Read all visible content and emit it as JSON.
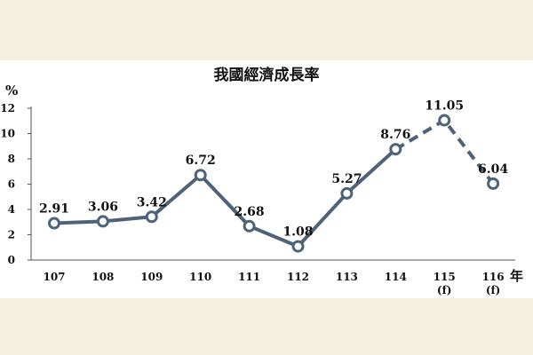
{
  "chart_data": {
    "type": "line",
    "title": "我國經濟成長率",
    "ylabel": "%",
    "xlabel": "年",
    "ylim": [
      0,
      12
    ],
    "yticks": [
      "0",
      "2",
      "4",
      "6",
      "8",
      "10",
      "12"
    ],
    "grid": false,
    "legend": "none",
    "categories": [
      "107",
      "108",
      "109",
      "110",
      "111",
      "112",
      "113",
      "114",
      "115",
      "116"
    ],
    "category_notes": [
      "",
      "",
      "",
      "",
      "",
      "",
      "",
      "",
      "(f)",
      "(f)"
    ],
    "series": [
      {
        "values": [
          2.91,
          3.06,
          3.42,
          6.72,
          2.68,
          1.08,
          5.27,
          8.76,
          11.05,
          6.04
        ],
        "labels": [
          "2.91",
          "3.06",
          "3.42",
          "6.72",
          "2.68",
          "1.08",
          "5.27",
          "8.76",
          "11.05",
          "6.04"
        ],
        "forecast_from_index": 7,
        "color": "#4e6378"
      }
    ],
    "axis_color": "#555555"
  }
}
